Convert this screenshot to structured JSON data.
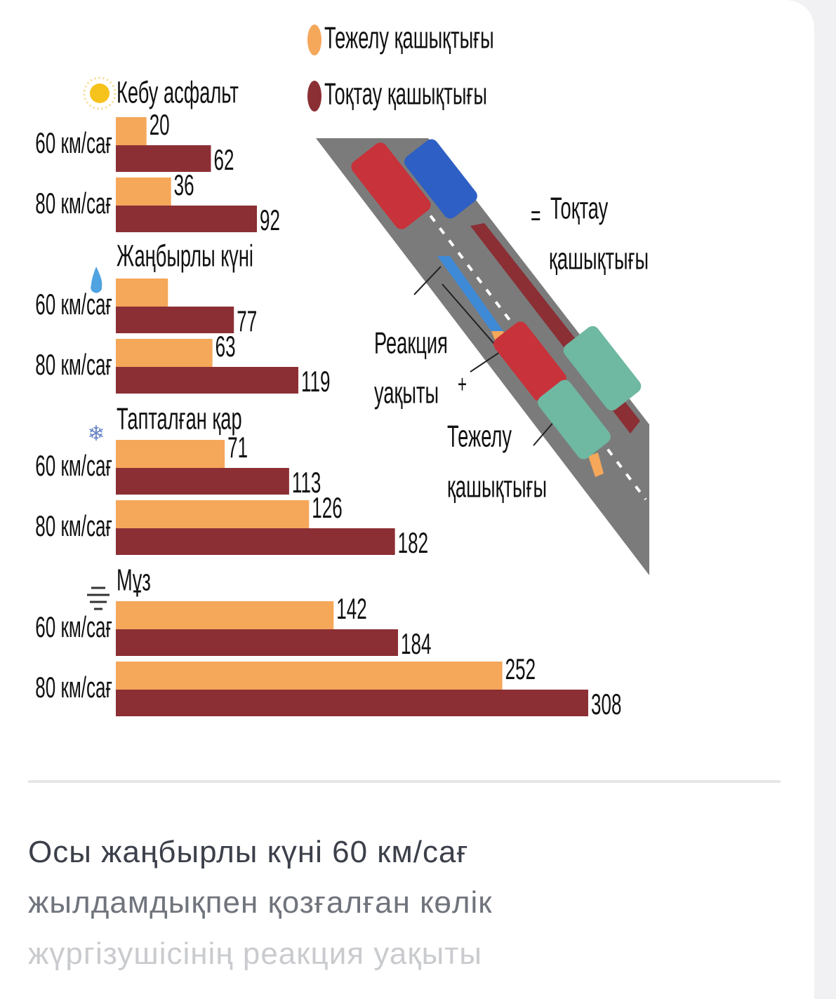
{
  "chart_data": {
    "type": "bar",
    "orientation": "horizontal",
    "groups": [
      "Кебу асфальт",
      "Жаңбырлы күні",
      "Тапталған қар",
      "Мұз"
    ],
    "categories": [
      "60 км/сағ",
      "80 км/сағ",
      "60 км/сағ",
      "80 км/сағ",
      "60 км/сағ",
      "80 км/сағ",
      "60 км/сағ",
      "80 км/сағ"
    ],
    "series": [
      {
        "name": "Тежелу қашықтығы",
        "color": "#f5a75a",
        "values": [
          20,
          36,
          34,
          63,
          71,
          126,
          142,
          252
        ],
        "value_labels": [
          "20",
          "36",
          null,
          "63",
          "71",
          "126",
          "142",
          "252"
        ]
      },
      {
        "name": "Тоқтау қашықтығы",
        "color": "#8b2f35",
        "values": [
          62,
          92,
          77,
          119,
          113,
          182,
          184,
          308
        ],
        "value_labels": [
          "62",
          "92",
          "77",
          "119",
          "113",
          "182",
          "184",
          "308"
        ]
      }
    ],
    "legend": "top-right"
  },
  "diagram": {
    "equals": "=",
    "stopping": [
      "Тоқтау",
      "қашықтығы"
    ],
    "reaction": [
      "Реакция",
      "уақыты"
    ],
    "plus": "+",
    "braking": [
      "Тежелу",
      "қашықтығы"
    ]
  },
  "question": [
    "Осы жаңбырлы күні 60 км/сағ",
    "жылдамдықпен қозғалған көлік",
    "жүргізушісінің реакция уақыты"
  ]
}
